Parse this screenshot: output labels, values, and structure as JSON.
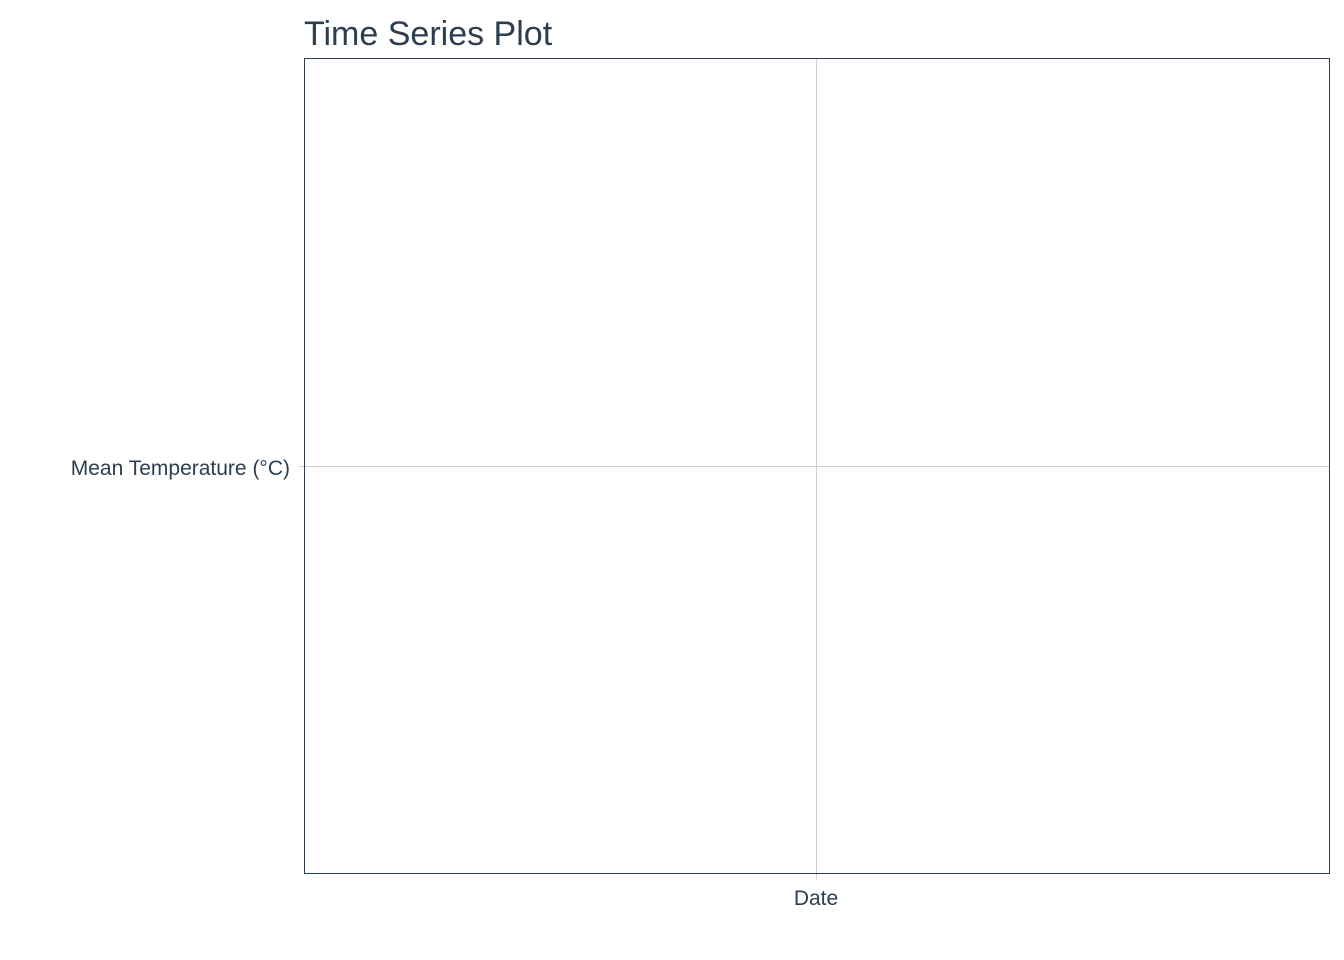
{
  "chart_data": {
    "type": "line",
    "title": "Time Series Plot",
    "xlabel": "",
    "ylabel": "",
    "x_ticks": [
      "Date"
    ],
    "y_ticks": [
      "Mean Temperature (°C)"
    ],
    "series": [],
    "grid": true,
    "legend": "none",
    "colors": {
      "text": "#2c3e50",
      "frame": "#2c3e50",
      "grid": "#d0d0d0",
      "background": "#ffffff"
    }
  }
}
